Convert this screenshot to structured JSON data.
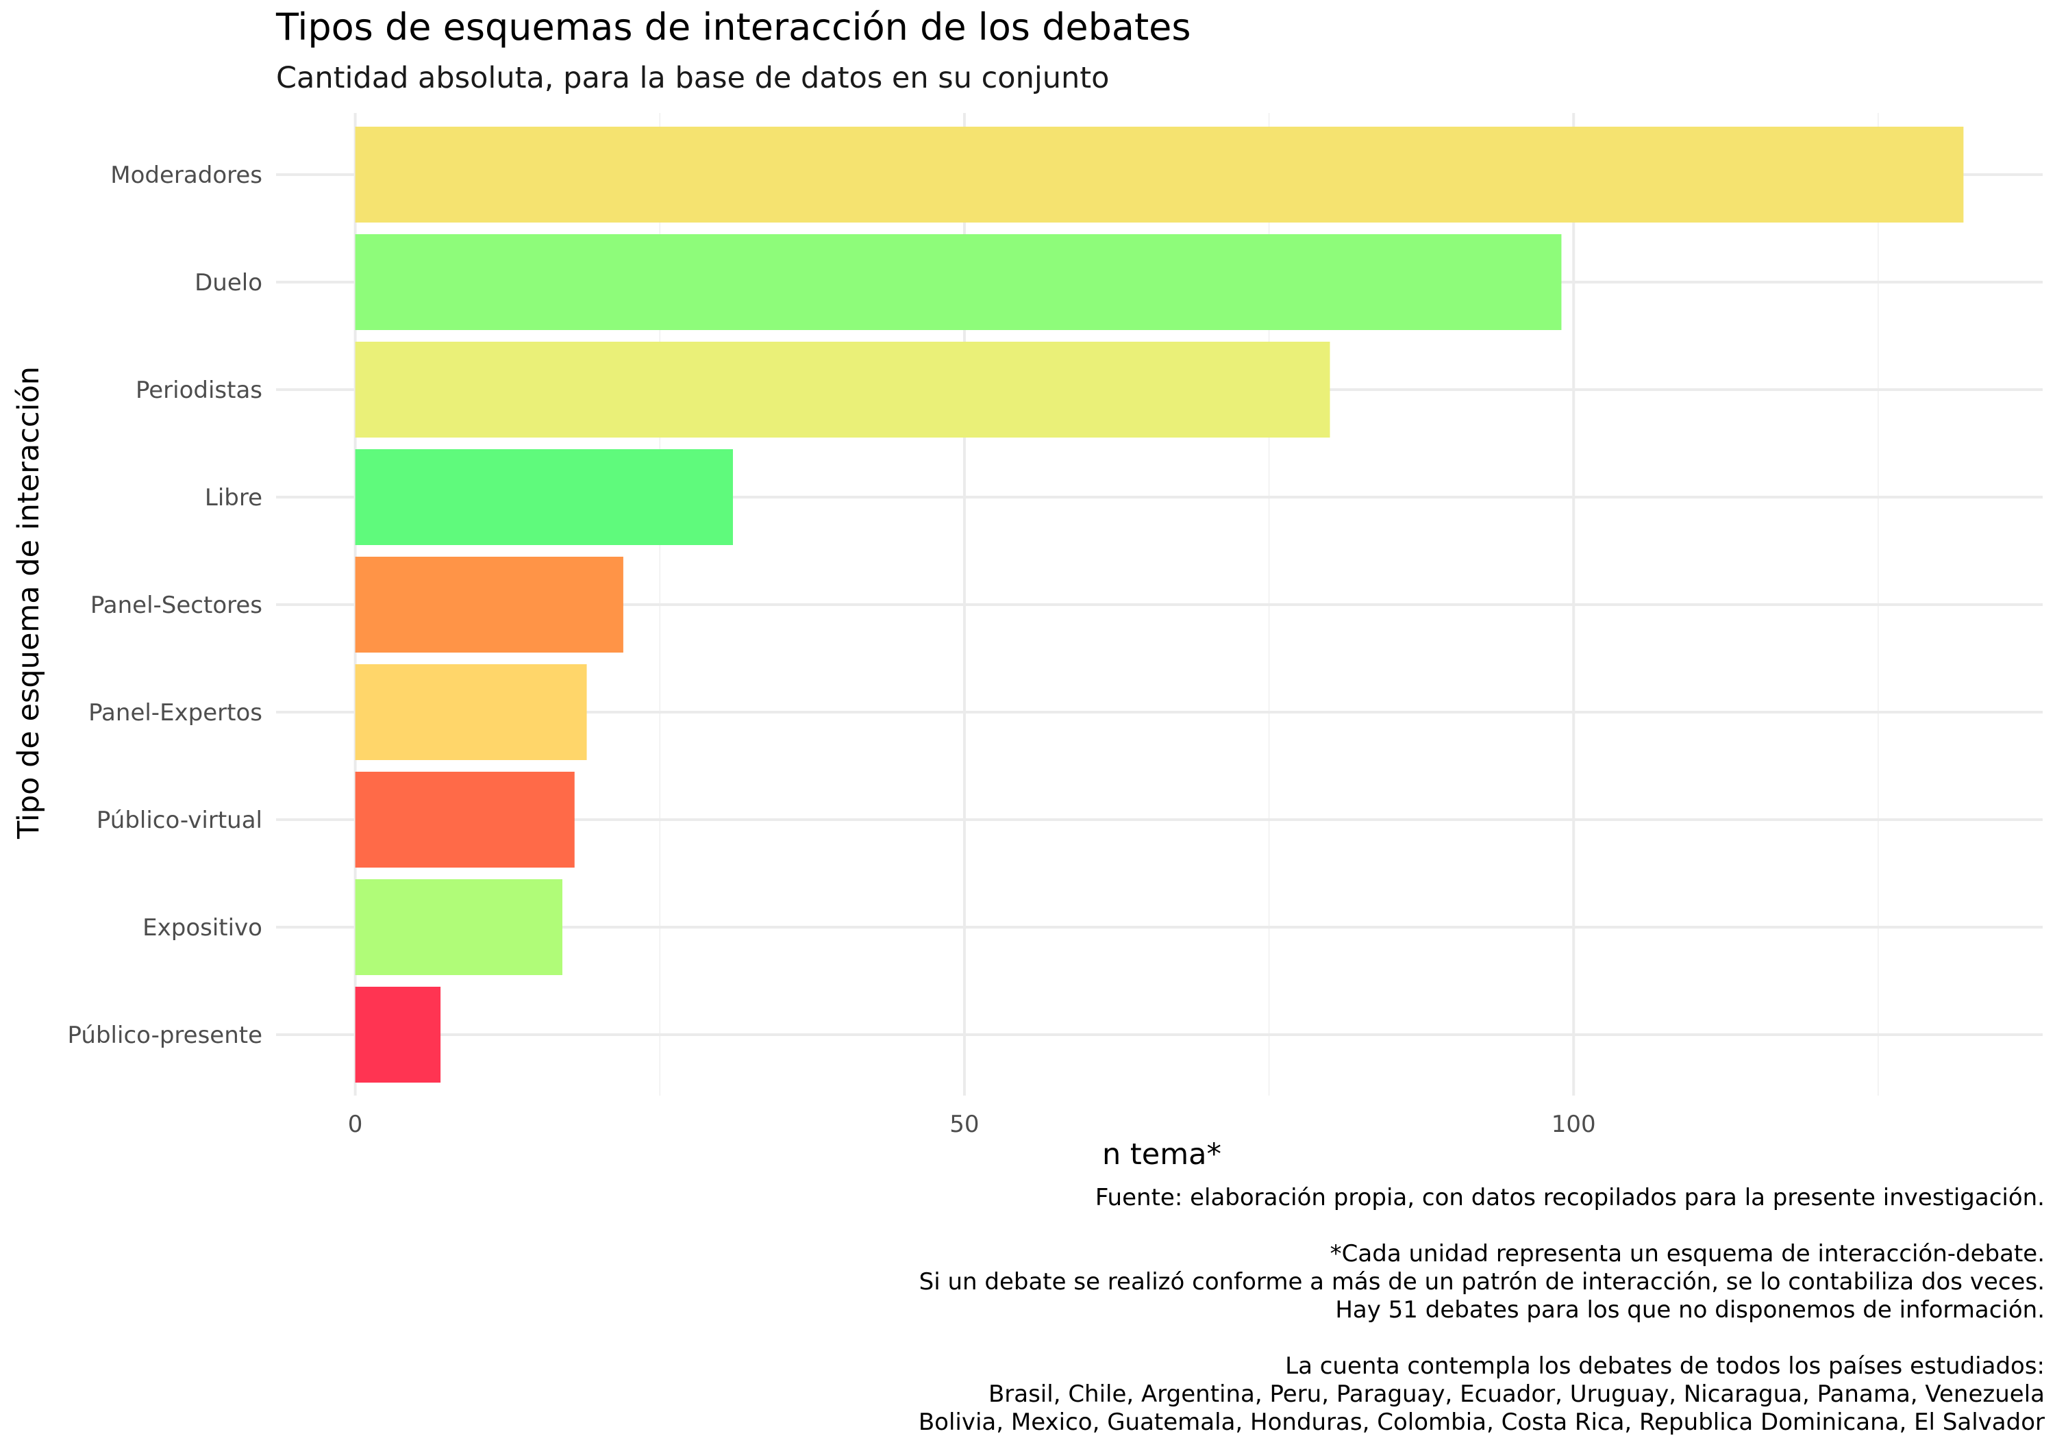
{
  "chart_data": {
    "type": "bar",
    "orientation": "horizontal",
    "title": "Tipos de esquemas de interacción de los debates",
    "subtitle": "Cantidad absoluta, para la base de datos en su conjunto",
    "xlabel": "n tema*",
    "ylabel": "Tipo de esquema de interacción",
    "categories": [
      "Moderadores",
      "Duelo",
      "Periodistas",
      "Libre",
      "Panel-Sectores",
      "Panel-Expertos",
      "Público-virtual",
      "Expositivo",
      "Público-presente"
    ],
    "values": [
      132,
      99,
      80,
      31,
      22,
      19,
      18,
      17,
      7
    ],
    "colors": [
      "#F5E370",
      "#8EFC7A",
      "#EAF078",
      "#5FFA7C",
      "#FF9447",
      "#FFD66A",
      "#FF6A48",
      "#B0FC78",
      "#FF3452"
    ],
    "xlim": [
      -6.5,
      138.5
    ],
    "x_ticks": [
      0,
      50,
      100
    ],
    "x_minor_ticks": [
      25,
      75,
      125
    ],
    "grid": true,
    "legend": "none",
    "caption": [
      "Fuente: elaboración propia, con datos recopilados para la presente investigación.",
      "",
      "*Cada unidad representa un esquema de interacción-debate.",
      "Si un debate se realizó conforme a más de un patrón de interacción, se lo contabiliza dos veces.",
      "Hay 51 debates para los que no disponemos de información.",
      "",
      "La cuenta contempla los debates de todos los países estudiados: ",
      "Brasil, Chile, Argentina, Peru, Paraguay, Ecuador, Uruguay, Nicaragua, Panama, Venezuela ",
      "Bolivia, Mexico, Guatemala, Honduras, Colombia, Costa Rica, Republica Dominicana, El Salvador"
    ]
  }
}
